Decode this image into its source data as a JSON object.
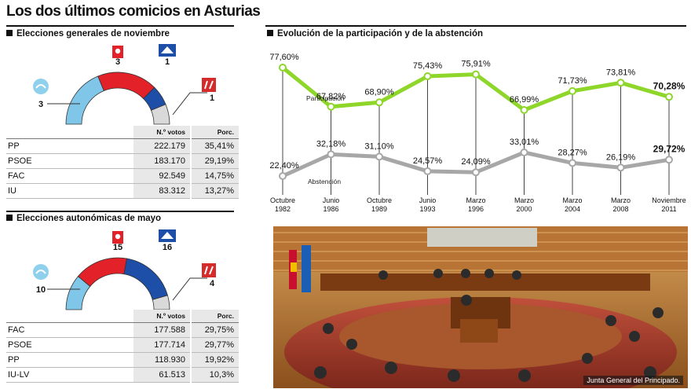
{
  "title": "Los dos últimos comicios en Asturias",
  "colors": {
    "pp": "#7fc6e8",
    "psoe": "#e32128",
    "fac": "#1d4ea8",
    "iu": "#d9d9d9",
    "participation": "#8ed62a",
    "abstention": "#a7a7a7"
  },
  "general": {
    "title": "Elecciones generales de noviembre",
    "seats": [
      {
        "party": "PP",
        "value": 3,
        "icon": "pp-logo-icon"
      },
      {
        "party": "PSOE",
        "value": 3,
        "icon": "psoe-logo-icon"
      },
      {
        "party": "FAC",
        "value": 1,
        "icon": "fac-logo-icon"
      },
      {
        "party": "IU",
        "value": 1,
        "icon": "iu-logo-icon"
      }
    ],
    "seat_labels": {
      "pp": "3",
      "psoe": "3",
      "fac": "1",
      "iu": "1"
    },
    "table": {
      "col_votes": "N.º votos",
      "col_perc": "Porc.",
      "rows": [
        {
          "party": "PP",
          "votes": "222.179",
          "perc": "35,41%"
        },
        {
          "party": "PSOE",
          "votes": "183.170",
          "perc": "29,19%"
        },
        {
          "party": "FAC",
          "votes": "92.549",
          "perc": "14,75%"
        },
        {
          "party": "IU",
          "votes": "83.312",
          "perc": "13,27%"
        }
      ]
    }
  },
  "autonomic": {
    "title": "Elecciones autonómicas de mayo",
    "seats": [
      {
        "party": "PP",
        "value": 10,
        "icon": "pp-logo-icon"
      },
      {
        "party": "PSOE",
        "value": 15,
        "icon": "psoe-logo-icon"
      },
      {
        "party": "FAC",
        "value": 16,
        "icon": "fac-logo-icon"
      },
      {
        "party": "IU-LV",
        "value": 4,
        "icon": "iu-logo-icon"
      }
    ],
    "seat_labels": {
      "pp": "10",
      "psoe": "15",
      "fac": "16",
      "iu": "4"
    },
    "table": {
      "col_votes": "N.º votos",
      "col_perc": "Porc.",
      "rows": [
        {
          "party": "FAC",
          "votes": "177.588",
          "perc": "29,75%"
        },
        {
          "party": "PSOE",
          "votes": "177.714",
          "perc": "29,77%"
        },
        {
          "party": "PP",
          "votes": "118.930",
          "perc": "19,92%"
        },
        {
          "party": "IU-LV",
          "votes": "61.513",
          "perc": "10,3%"
        }
      ]
    }
  },
  "evolution_title": "Evolución de la participación y de la abstención",
  "photo_caption": "Junta General del Principado.",
  "chart_data": [
    {
      "type": "line",
      "title": "Evolución de la participación y de la abstención",
      "categories": [
        [
          "Octubre",
          "1982"
        ],
        [
          "Junio",
          "1986"
        ],
        [
          "Octubre",
          "1989"
        ],
        [
          "Junio",
          "1993"
        ],
        [
          "Marzo",
          "1996"
        ],
        [
          "Marzo",
          "2000"
        ],
        [
          "Marzo",
          "2004"
        ],
        [
          "Marzo",
          "2008"
        ],
        [
          "Noviembre",
          "2011"
        ]
      ],
      "series": [
        {
          "name": "Participación",
          "values": [
            77.6,
            67.82,
            68.9,
            75.43,
            75.91,
            66.99,
            71.73,
            73.81,
            70.28
          ],
          "labels": [
            "77,60%",
            "67,82%",
            "68,90%",
            "75,43%",
            "75,91%",
            "66,99%",
            "71,73%",
            "73,81%",
            "70,28%"
          ]
        },
        {
          "name": "Abstención",
          "values": [
            22.4,
            32.18,
            31.1,
            24.57,
            24.09,
            33.01,
            28.27,
            26.19,
            29.72
          ],
          "labels": [
            "22,40%",
            "32,18%",
            "31,10%",
            "24,57%",
            "24,09%",
            "33,01%",
            "28,27%",
            "26,19%",
            "29,72%"
          ]
        }
      ],
      "grid": "vertical"
    },
    {
      "type": "pie",
      "title": "Elecciones generales de noviembre",
      "categories": [
        "PP",
        "PSOE",
        "FAC",
        "IU"
      ],
      "values": [
        3,
        3,
        1,
        1
      ]
    },
    {
      "type": "pie",
      "title": "Elecciones autonómicas de mayo",
      "categories": [
        "PP",
        "PSOE",
        "FAC",
        "IU-LV"
      ],
      "values": [
        10,
        15,
        16,
        4
      ]
    }
  ]
}
